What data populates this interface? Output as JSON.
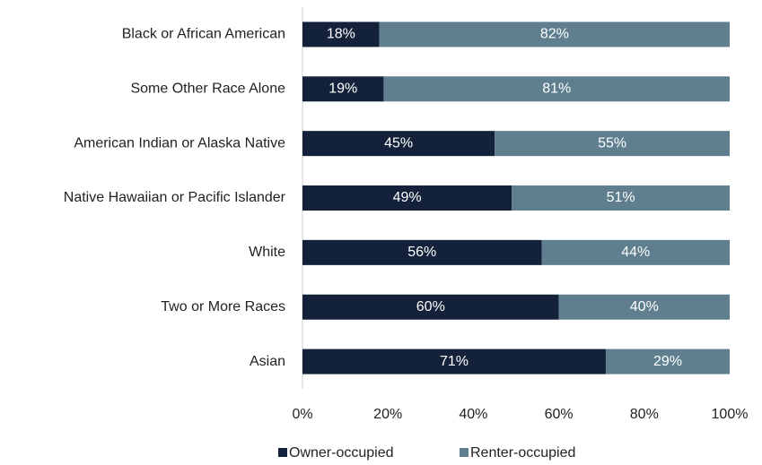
{
  "chart_data": {
    "type": "bar",
    "orientation": "horizontal",
    "stacked": true,
    "categories": [
      "Black or African American",
      "Some Other Race Alone",
      "American Indian or Alaska Native",
      "Native Hawaiian or Pacific Islander",
      "White",
      "Two or More Races",
      "Asian"
    ],
    "series": [
      {
        "name": "Owner-occupied",
        "color": "#13223a",
        "values": [
          18,
          19,
          45,
          49,
          56,
          60,
          71
        ],
        "value_labels": [
          "18%",
          "19%",
          "45%",
          "49%",
          "56%",
          "60%",
          "71%"
        ]
      },
      {
        "name": "Renter-occupied",
        "color": "#5f7f8f",
        "values": [
          82,
          81,
          55,
          51,
          44,
          40,
          29
        ],
        "value_labels": [
          "82%",
          "81%",
          "55%",
          "51%",
          "44%",
          "40%",
          "29%"
        ]
      }
    ],
    "xlim": [
      0,
      100
    ],
    "xticks": [
      {
        "value": 0,
        "label": "0%"
      },
      {
        "value": 20,
        "label": "20%"
      },
      {
        "value": 40,
        "label": "40%"
      },
      {
        "value": 60,
        "label": "60%"
      },
      {
        "value": 80,
        "label": "80%"
      },
      {
        "value": 100,
        "label": "100%"
      }
    ],
    "grid": false,
    "legend": "bottom"
  }
}
